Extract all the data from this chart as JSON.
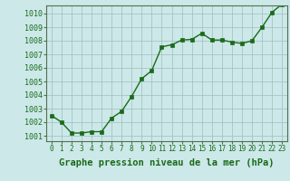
{
  "x": [
    0,
    1,
    2,
    3,
    4,
    5,
    6,
    7,
    8,
    9,
    10,
    11,
    12,
    13,
    14,
    15,
    16,
    17,
    18,
    19,
    20,
    21,
    22,
    23
  ],
  "y": [
    1002.5,
    1002.0,
    1001.2,
    1001.2,
    1001.3,
    1001.3,
    1002.3,
    1002.8,
    1003.9,
    1005.2,
    1005.8,
    1007.55,
    1007.7,
    1008.05,
    1008.1,
    1008.55,
    1008.05,
    1008.05,
    1007.9,
    1007.8,
    1008.0,
    1009.0,
    1010.1,
    1010.7
  ],
  "ylim": [
    1000.6,
    1010.6
  ],
  "yticks": [
    1001,
    1002,
    1003,
    1004,
    1005,
    1006,
    1007,
    1008,
    1009,
    1010
  ],
  "xlim": [
    -0.5,
    23.5
  ],
  "xticks": [
    0,
    1,
    2,
    3,
    4,
    5,
    6,
    7,
    8,
    9,
    10,
    11,
    12,
    13,
    14,
    15,
    16,
    17,
    18,
    19,
    20,
    21,
    22,
    23
  ],
  "line_color": "#1a6b1a",
  "marker_color": "#1a6b1a",
  "bg_color": "#cce8e8",
  "grid_color": "#a0bebe",
  "xlabel": "Graphe pression niveau de la mer (hPa)",
  "xlabel_fontsize": 7.5,
  "ytick_fontsize": 6.0,
  "xtick_fontsize": 5.5,
  "line_width": 1.0,
  "marker_size": 2.5
}
